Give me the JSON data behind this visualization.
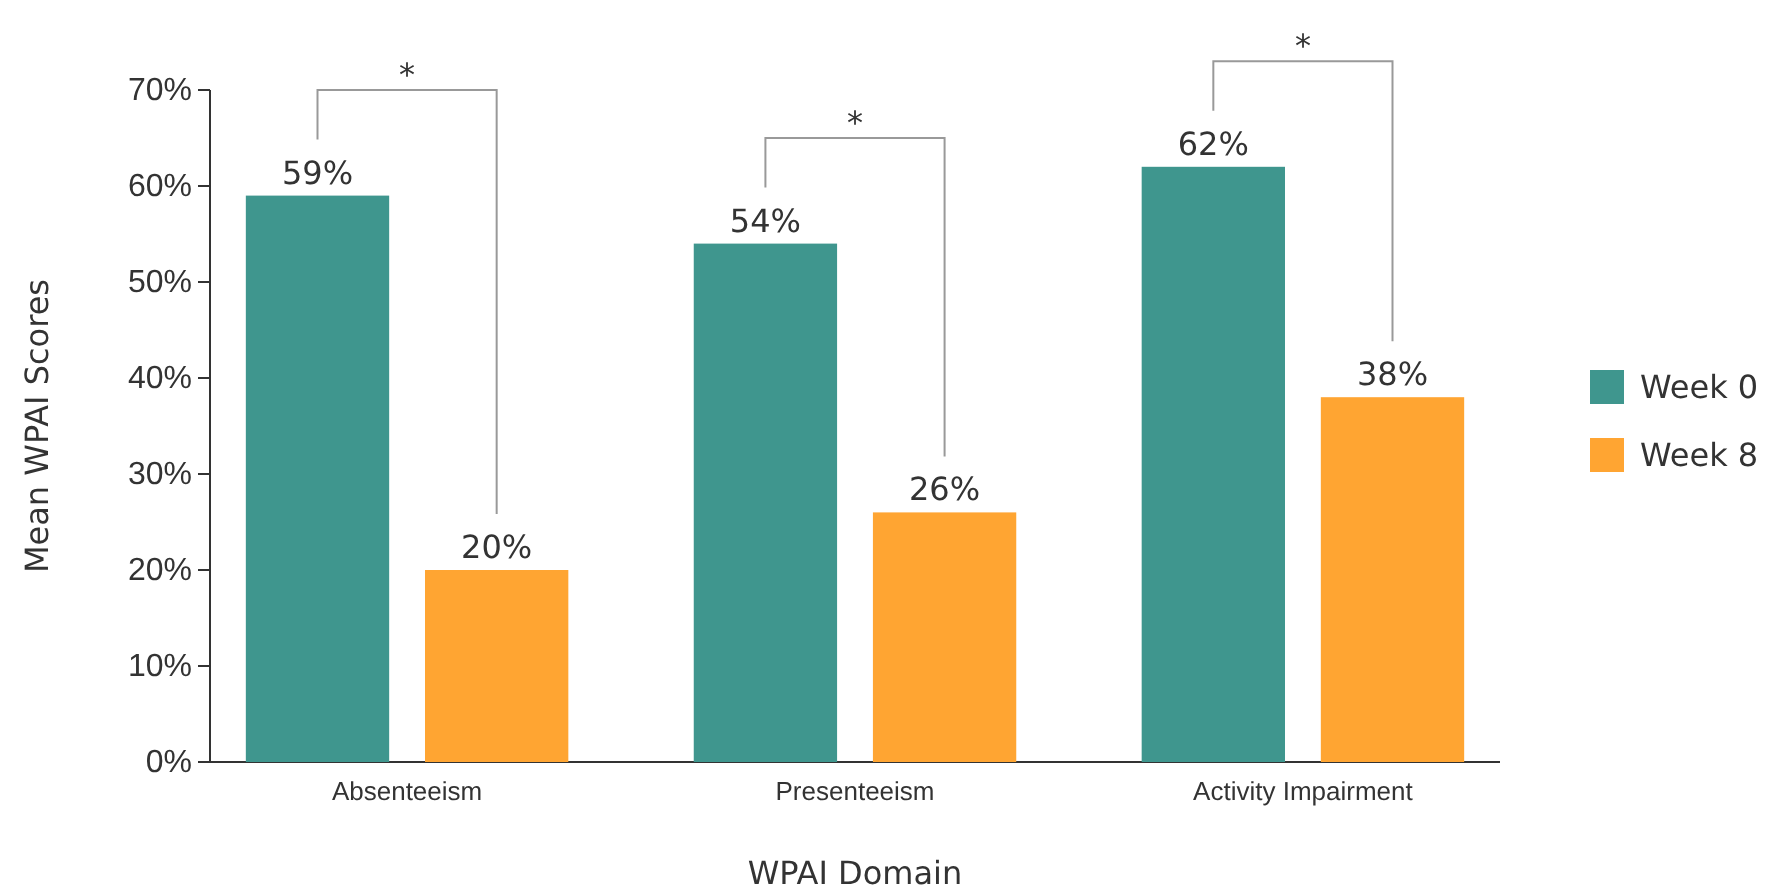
{
  "chart_data": {
    "type": "bar",
    "xlabel": "WPAI Domain",
    "ylabel": "Mean WPAI Scores",
    "categories": [
      "Absenteeism",
      "Presenteeism",
      "Activity Impairment"
    ],
    "series": [
      {
        "name": "Week 0",
        "color": "#3f968e",
        "values": [
          59,
          54,
          62
        ],
        "value_labels": [
          "59%",
          "54%",
          "62%"
        ]
      },
      {
        "name": "Week 8",
        "color": "#ffa532",
        "values": [
          20,
          26,
          38
        ],
        "value_labels": [
          "20%",
          "26%",
          "38%"
        ]
      }
    ],
    "ylim": [
      0,
      70
    ],
    "yticks": [
      {
        "value": 0,
        "label": "0%"
      },
      {
        "value": 10,
        "label": "10%"
      },
      {
        "value": 20,
        "label": "20%"
      },
      {
        "value": 30,
        "label": "30%"
      },
      {
        "value": 40,
        "label": "40%"
      },
      {
        "value": 50,
        "label": "50%"
      },
      {
        "value": 60,
        "label": "60%"
      },
      {
        "value": 70,
        "label": "70%"
      }
    ],
    "grid": false,
    "legend": "right",
    "annotations": [
      "*",
      "*",
      "*"
    ]
  }
}
